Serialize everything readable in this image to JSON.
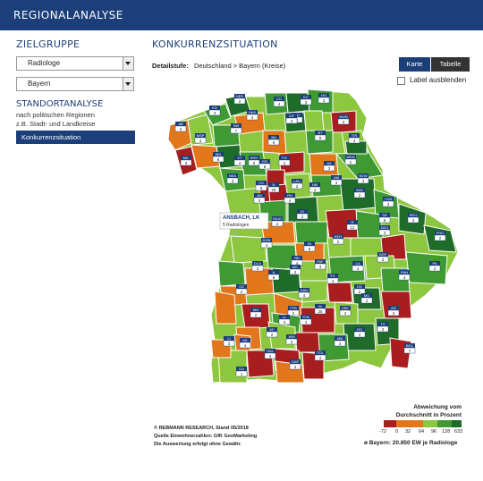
{
  "header": {
    "title": "REGIONALANALYSE"
  },
  "sidebar": {
    "zielgruppe_heading": "ZIELGRUPPE",
    "target_group_select": "Radiologe",
    "region_select": "Bayern",
    "standort_heading": "STANDORTANALYSE",
    "standort_sub1": "nach politischen Regionen",
    "standort_sub2": "z.B. Stadt- und Landkreise",
    "active_item": "Konkurrenzsituation"
  },
  "main": {
    "heading": "KONKURRENZSITUATION",
    "detail_label": "Detailstufe:",
    "breadcrumb": "Deutschland > Bayern (Kreise)",
    "view_tabs": [
      "Karte",
      "Tabelle"
    ],
    "hide_labels": "Label ausblenden",
    "tooltip_name": "ANSBACH, LK",
    "tooltip_value": "5 Radiologen"
  },
  "colors": {
    "brand": "#1c3f7a",
    "dark_red": "#a81d1d",
    "orange": "#e2761b",
    "light_green": "#8dc63f",
    "green": "#3f9a34",
    "dark_green": "#1f6b2a"
  },
  "legend": {
    "title1": "Abweichung vom",
    "title2": "Durchschnitt in Prozent",
    "ticks": [
      "-72",
      "0",
      "32",
      "64",
      "96",
      "128",
      "633"
    ],
    "note": "ø Bayern: 20.850 EW je Radiologe"
  },
  "credits": {
    "line1": "© REBMANN RESEARCH, Stand 05/2018",
    "line2": "Quelle Einwohnerzahlen: GfK GeoMarketing",
    "line3": "Die Auswertung erfolgt ohne Gewähr."
  },
  "map_labels": [
    {
      "code": "NES",
      "count": "2"
    },
    {
      "code": "KG",
      "count": "3"
    },
    {
      "code": "HAS",
      "count": "4"
    },
    {
      "code": "CO",
      "count": "4"
    },
    {
      "code": "KC",
      "count": "3"
    },
    {
      "code": "HO",
      "count": "3"
    },
    {
      "code": "AB",
      "count": "3"
    },
    {
      "code": "MSP",
      "count": "3"
    },
    {
      "code": "SW",
      "count": "7"
    },
    {
      "code": "BA",
      "count": "6"
    },
    {
      "code": "KU",
      "count": "2"
    },
    {
      "code": "LIF",
      "count": "3"
    },
    {
      "code": "BT",
      "count": "9"
    },
    {
      "code": "WUN",
      "count": "3"
    },
    {
      "code": "TIR",
      "count": "3"
    },
    {
      "code": "MIL",
      "count": "3"
    },
    {
      "code": "WÜ",
      "count": "8"
    },
    {
      "code": "KT",
      "count": "4"
    },
    {
      "code": "ERH",
      "count": "6"
    },
    {
      "code": "FO",
      "count": "4"
    },
    {
      "code": "NEW",
      "count": "3"
    },
    {
      "code": "WEN",
      "count": "2"
    },
    {
      "code": "AS",
      "count": "3"
    },
    {
      "code": "AM",
      "count": "3"
    },
    {
      "code": "NEA",
      "count": "3"
    },
    {
      "code": "ER",
      "count": "8"
    },
    {
      "code": "FÜ",
      "count": "9"
    },
    {
      "code": "N",
      "count": "25"
    },
    {
      "code": "LAU",
      "count": "2"
    },
    {
      "code": "SAD",
      "count": "2"
    },
    {
      "code": "AN",
      "count": "2"
    },
    {
      "code": "RH",
      "count": "4"
    },
    {
      "code": "NM",
      "count": "4"
    },
    {
      "code": "CHA",
      "count": "3"
    },
    {
      "code": "SR",
      "count": "6"
    },
    {
      "code": "REG",
      "count": "3"
    },
    {
      "code": "WUG",
      "count": "4"
    },
    {
      "code": "EI",
      "count": "2"
    },
    {
      "code": "R",
      "count": "12"
    },
    {
      "code": "KEH",
      "count": "2"
    },
    {
      "code": "DEG",
      "count": "3"
    },
    {
      "code": "FRG",
      "count": "2"
    },
    {
      "code": "DON",
      "count": "4"
    },
    {
      "code": "IN",
      "count": "6"
    },
    {
      "code": "ND",
      "count": "4"
    },
    {
      "code": "PAF",
      "count": "3"
    },
    {
      "code": "LA",
      "count": "4"
    },
    {
      "code": "DGF",
      "count": "3"
    },
    {
      "code": "PA",
      "count": "4"
    },
    {
      "code": "DLG",
      "count": "3"
    },
    {
      "code": "A",
      "count": "9"
    },
    {
      "code": "AIC",
      "count": "3"
    },
    {
      "code": "FS",
      "count": "4"
    },
    {
      "code": "ED",
      "count": "2"
    },
    {
      "code": "PAN",
      "count": "4"
    },
    {
      "code": "GZ",
      "count": "2"
    },
    {
      "code": "DAH",
      "count": "4"
    },
    {
      "code": "MÜ",
      "count": "2"
    },
    {
      "code": "AÖ",
      "count": "3"
    },
    {
      "code": "FFB",
      "count": "2"
    },
    {
      "code": "EBE",
      "count": "2"
    },
    {
      "code": "MN",
      "count": "2"
    },
    {
      "code": "LL",
      "count": "3"
    },
    {
      "code": "STA",
      "count": "3"
    },
    {
      "code": "M",
      "count": "35"
    },
    {
      "code": "RO",
      "count": "4"
    },
    {
      "code": "TS",
      "count": "3"
    },
    {
      "code": "KF",
      "count": "2"
    },
    {
      "code": "WM",
      "count": "2"
    },
    {
      "code": "MB",
      "count": "2"
    },
    {
      "code": "BGL",
      "count": "7"
    },
    {
      "code": "OAL",
      "count": "4"
    },
    {
      "code": "GAP",
      "count": "4"
    },
    {
      "code": "TÖL",
      "count": "4"
    },
    {
      "code": "LI",
      "count": "3"
    },
    {
      "code": "OA",
      "count": "1"
    },
    {
      "code": "KE",
      "count": "4"
    }
  ]
}
